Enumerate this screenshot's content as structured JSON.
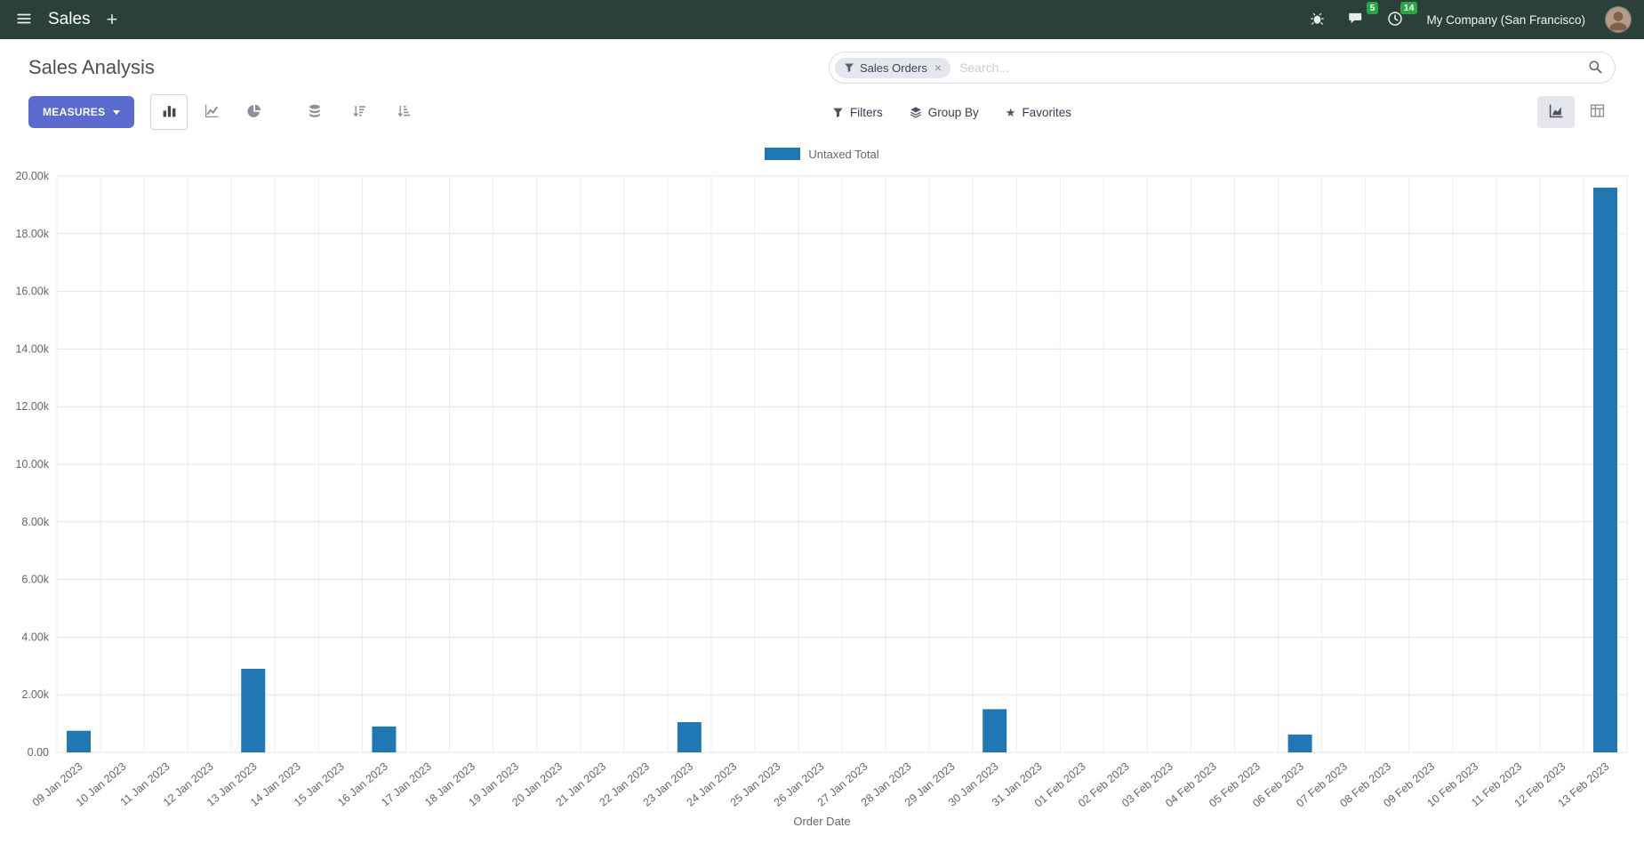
{
  "colors": {
    "navbar-bg": "#2b4038",
    "primary": "#5a6acf",
    "bar-blue": "#1f77b4",
    "badge-green": "#28a745"
  },
  "navbar": {
    "app_name": "Sales",
    "company": "My Company (San Francisco)",
    "messages_badge": "5",
    "activities_badge": "14"
  },
  "icons": {
    "plus": "+",
    "close": "×",
    "star": "★"
  },
  "control_panel": {
    "title": "Sales Analysis",
    "measures_label": "MEASURES",
    "filters_label": "Filters",
    "group_by_label": "Group By",
    "favorites_label": "Favorites",
    "search": {
      "facet_label": "Sales Orders",
      "placeholder": "Search..."
    }
  },
  "chart_data": {
    "type": "bar",
    "title": "",
    "legend_position": "top",
    "grid": true,
    "xlabel": "Order Date",
    "ylabel": "",
    "ylim": [
      0,
      20000
    ],
    "y_tick_labels": [
      "0.00",
      "2.00k",
      "4.00k",
      "6.00k",
      "8.00k",
      "10.00k",
      "12.00k",
      "14.00k",
      "16.00k",
      "18.00k",
      "20.00k"
    ],
    "categories": [
      "09 Jan 2023",
      "10 Jan 2023",
      "11 Jan 2023",
      "12 Jan 2023",
      "13 Jan 2023",
      "14 Jan 2023",
      "15 Jan 2023",
      "16 Jan 2023",
      "17 Jan 2023",
      "18 Jan 2023",
      "19 Jan 2023",
      "20 Jan 2023",
      "21 Jan 2023",
      "22 Jan 2023",
      "23 Jan 2023",
      "24 Jan 2023",
      "25 Jan 2023",
      "26 Jan 2023",
      "27 Jan 2023",
      "28 Jan 2023",
      "29 Jan 2023",
      "30 Jan 2023",
      "31 Jan 2023",
      "01 Feb 2023",
      "02 Feb 2023",
      "03 Feb 2023",
      "04 Feb 2023",
      "05 Feb 2023",
      "06 Feb 2023",
      "07 Feb 2023",
      "08 Feb 2023",
      "09 Feb 2023",
      "10 Feb 2023",
      "11 Feb 2023",
      "12 Feb 2023",
      "13 Feb 2023"
    ],
    "series": [
      {
        "name": "Untaxed Total",
        "color": "#1f77b4",
        "values": [
          750,
          0,
          0,
          0,
          2900,
          0,
          0,
          900,
          0,
          0,
          0,
          0,
          0,
          0,
          1050,
          0,
          0,
          0,
          0,
          0,
          0,
          1500,
          0,
          0,
          0,
          0,
          0,
          0,
          620,
          0,
          0,
          0,
          0,
          0,
          0,
          19600
        ]
      }
    ]
  }
}
